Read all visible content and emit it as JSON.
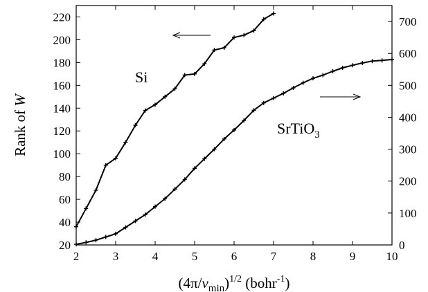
{
  "chart_data": {
    "type": "line",
    "xlabel": {
      "base": "(4π/",
      "var": "v",
      "sub": "min",
      "close": ")",
      "sup": "1/2",
      "unit": " (bohr",
      "unit_sup": "-1",
      "unit_close": ")"
    },
    "ylabel": {
      "text": "Rank of ",
      "var": "W"
    },
    "xlim": [
      2,
      10
    ],
    "ylim_left": [
      20,
      230
    ],
    "ylim_right": [
      0,
      750
    ],
    "x_ticks": [
      2,
      3,
      4,
      5,
      6,
      7,
      8,
      9,
      10
    ],
    "y_ticks_left": [
      20,
      40,
      60,
      80,
      100,
      120,
      140,
      160,
      180,
      200,
      220
    ],
    "y_ticks_right": [
      0,
      100,
      200,
      300,
      400,
      500,
      600,
      700
    ],
    "grid": false,
    "series": [
      {
        "name": "Si",
        "axis": "left",
        "label": {
          "text": "Si"
        },
        "x": [
          2.0,
          2.25,
          2.5,
          2.75,
          3.0,
          3.25,
          3.5,
          3.75,
          4.0,
          4.25,
          4.5,
          4.75,
          5.0,
          5.25,
          5.5,
          5.75,
          6.0,
          6.25,
          6.5,
          6.75,
          7.0
        ],
        "y": [
          36,
          52,
          68,
          90,
          96,
          110,
          125,
          138,
          143,
          150,
          157,
          169,
          170,
          179,
          191,
          193,
          202,
          204,
          208,
          218,
          223
        ]
      },
      {
        "name": "SrTiO3",
        "axis": "right",
        "label": {
          "base": "SrTiO",
          "sub": "3"
        },
        "x": [
          2.0,
          2.25,
          2.5,
          2.75,
          3.0,
          3.25,
          3.5,
          3.75,
          4.0,
          4.25,
          4.5,
          4.75,
          5.0,
          5.25,
          5.5,
          5.75,
          6.0,
          6.25,
          6.5,
          6.75,
          7.0,
          7.25,
          7.5,
          7.75,
          8.0,
          8.25,
          8.5,
          8.75,
          9.0,
          9.25,
          9.5,
          9.75,
          10.0
        ],
        "y": [
          2,
          8,
          15,
          25,
          35,
          55,
          75,
          95,
          120,
          145,
          175,
          205,
          240,
          270,
          300,
          332,
          360,
          390,
          422,
          445,
          460,
          475,
          492,
          508,
          522,
          532,
          544,
          555,
          563,
          570,
          576,
          578,
          581
        ]
      }
    ]
  }
}
